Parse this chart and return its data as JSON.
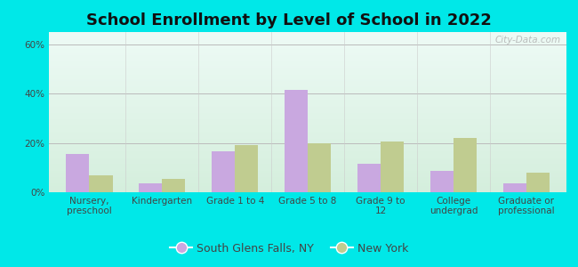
{
  "title": "School Enrollment by Level of School in 2022",
  "categories": [
    "Nursery,\npreschool",
    "Kindergarten",
    "Grade 1 to 4",
    "Grade 5 to 8",
    "Grade 9 to\n12",
    "College\nundergrad",
    "Graduate or\nprofessional"
  ],
  "south_glens_falls": [
    15.5,
    3.5,
    16.5,
    41.5,
    11.5,
    8.5,
    3.5
  ],
  "new_york": [
    7.0,
    5.5,
    19.0,
    20.0,
    20.5,
    22.0,
    8.0
  ],
  "bar_color_sgf": "#c9a8e0",
  "bar_color_ny": "#c0cc90",
  "background_outer": "#00e8e8",
  "bg_top": "#edfaf5",
  "bg_bottom": "#d4eedc",
  "grid_color": "#bbbbbb",
  "title_fontsize": 13,
  "tick_fontsize": 7.5,
  "legend_label_sgf": "South Glens Falls, NY",
  "legend_label_ny": "New York",
  "ylim": [
    0,
    65
  ],
  "yticks": [
    0,
    20,
    40,
    60
  ],
  "ytick_labels": [
    "0%",
    "20%",
    "40%",
    "60%"
  ],
  "watermark": "City-Data.com"
}
